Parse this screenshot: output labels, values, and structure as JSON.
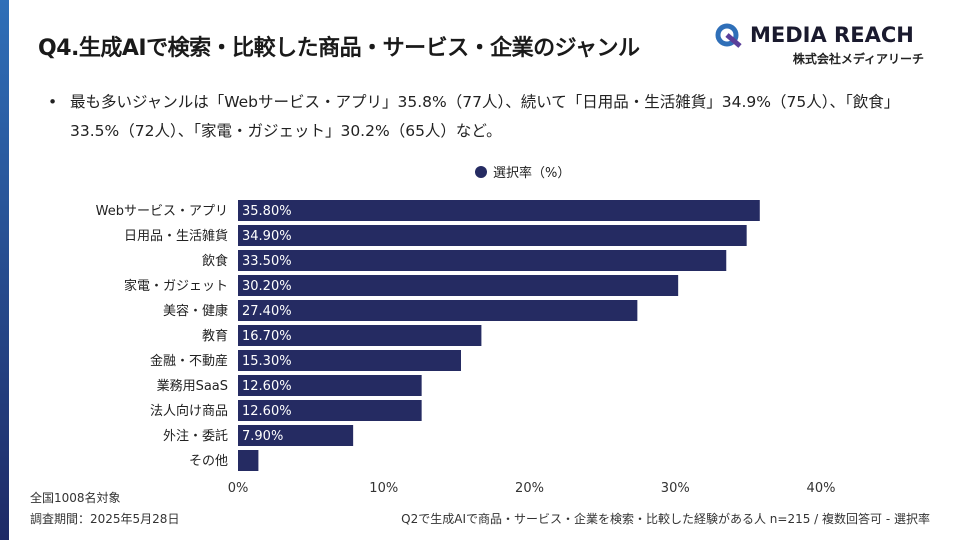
{
  "title": "Q4.生成AIで検索・比較した商品・サービス・企業のジャンル",
  "logo": {
    "brand": "MEDIA REACH",
    "company": "株式会社メディアリーチ"
  },
  "summary": "最も多いジャンルは「Webサービス・アプリ」35.8%（77人）、続いて「日用品・生活雑貨」34.9%（75人）、「飲食」33.5%（72人）、「家電・ガジェット」30.2%（65人）など。",
  "footer": {
    "sample": "全国1008名対象",
    "period": "調査期間：2025年5月28日",
    "note": "Q2で生成AIで商品・サービス・企業を検索・比較した経験がある人 n=215 / 複数回答可 - 選択率"
  },
  "colors": {
    "bar": "#252b62",
    "accent": "#2f6fb8"
  },
  "chart_data": {
    "type": "bar",
    "orientation": "horizontal",
    "legend": "選択率（%）",
    "legend_position": "top-center",
    "categories": [
      "Webサービス・アプリ",
      "日用品・生活雑貨",
      "飲食",
      "家電・ガジェット",
      "美容・健康",
      "教育",
      "金融・不動産",
      "業務用SaaS",
      "法人向け商品",
      "外注・委託",
      "その他"
    ],
    "values": [
      35.8,
      34.9,
      33.5,
      30.2,
      27.4,
      16.7,
      15.3,
      12.6,
      12.6,
      7.9,
      1.4
    ],
    "data_labels": [
      "35.80%",
      "34.90%",
      "33.50%",
      "30.20%",
      "27.40%",
      "16.70%",
      "15.30%",
      "12.60%",
      "12.60%",
      "7.90%",
      ""
    ],
    "xlim": [
      0,
      40
    ],
    "xticks": [
      "0%",
      "10%",
      "20%",
      "30%",
      "40%"
    ],
    "grid": false
  }
}
